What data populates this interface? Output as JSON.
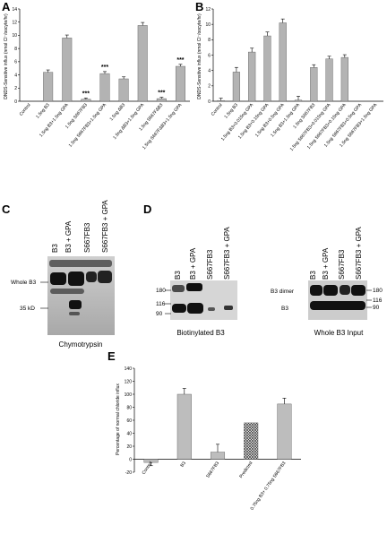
{
  "panels": {
    "A": {
      "letter": "A",
      "chart_data": {
        "type": "bar",
        "ylabel": "DNDS-Sensitive influx (nmol Cl⁻/oocyte/hr)",
        "ylim": [
          0,
          14
        ],
        "yticks": [
          0,
          2,
          4,
          6,
          8,
          10,
          12,
          14
        ],
        "categories": [
          "Control",
          "1.5ng B3",
          "1.5ng B3+1.5ng GPA",
          "1.5ng S667FB3",
          "1.5ng S667FB3+1.5ng GPA",
          "1.5ng ΔB3",
          "1.5ng ΔB3+1.5ng GPA",
          "1.5ng S667FΔB3",
          "1.5ng S667FΔB3+1.5ng GPA"
        ],
        "values": [
          0.0,
          4.4,
          9.6,
          0.3,
          4.2,
          3.4,
          11.5,
          0.4,
          5.3
        ],
        "errors": [
          0.0,
          0.35,
          0.45,
          0.2,
          0.3,
          0.3,
          0.45,
          0.2,
          0.3
        ],
        "annotations": [
          "",
          "",
          "",
          "***",
          "***",
          "",
          "",
          "***",
          "***"
        ]
      }
    },
    "B": {
      "letter": "B",
      "chart_data": {
        "type": "bar",
        "ylabel": "DNDS-Sensitive influx (nmol Cl⁻/oocyte/hr)",
        "ylim": [
          0,
          12
        ],
        "yticks": [
          0,
          2,
          4,
          6,
          8,
          10,
          12
        ],
        "categories": [
          "Control",
          "1.5ng B3",
          "1.5ng B3+0.015ng GPA",
          "1.5ng B3+0.15ng GPA",
          "1.5ng B3+0.5ng GPA",
          "1.5ng B3+1.5ng GPA",
          "1.5ng S667FB3",
          "1.5ng S667FB3+0.015ng GPA",
          "1.5ng S667FB3+0.15ng GPA",
          "1.5ng S667FB3+0.5ng GPA",
          "1.5ng S667FB3+1.5ng GPA"
        ],
        "values": [
          0.1,
          3.8,
          6.4,
          8.5,
          10.2,
          0.15,
          4.4,
          5.5,
          5.7,
          0,
          0
        ],
        "errors": [
          0.3,
          0.6,
          0.5,
          0.5,
          0.5,
          0.5,
          0.35,
          0.35,
          0.35,
          0,
          0
        ]
      }
    },
    "C": {
      "letter": "C",
      "lanes": [
        "B3",
        "B3 + GPA",
        "S667FB3",
        "S667FB3 + GPA"
      ],
      "markers": [
        "Whole B3",
        "35 kD"
      ],
      "caption": "Chymotrypsin"
    },
    "D": {
      "letter": "D",
      "left": {
        "lanes": [
          "B3",
          "B3 + GPA",
          "S667FB3",
          "S667FB3 + GPA"
        ],
        "markers": [
          "180",
          "116",
          "90"
        ],
        "caption": "Biotinylated B3"
      },
      "right": {
        "lanes": [
          "B3",
          "B3 + GPA",
          "S667FB3",
          "S667FB3 + GPA"
        ],
        "labels": [
          "B3 dimer",
          "B3"
        ],
        "markers": [
          "180",
          "116",
          "90"
        ],
        "caption": "Whole B3 Input"
      }
    },
    "E": {
      "letter": "E",
      "chart_data": {
        "type": "bar",
        "ylabel": "Percentage of normal chloride influx",
        "ylim": [
          -20,
          140
        ],
        "yticks": [
          -20,
          0,
          20,
          40,
          60,
          80,
          100,
          120,
          140
        ],
        "categories": [
          "Control",
          "B3",
          "S667FB3",
          "Predicted",
          "0.75ng B3+ 0.75ng S667FB3"
        ],
        "values": [
          -5,
          100,
          11,
          56,
          85
        ],
        "errors": [
          5,
          9,
          12,
          0,
          9
        ],
        "fills": [
          "#bdbdbd",
          "#bdbdbd",
          "#bdbdbd",
          "hatch",
          "#bdbdbd"
        ]
      }
    }
  }
}
